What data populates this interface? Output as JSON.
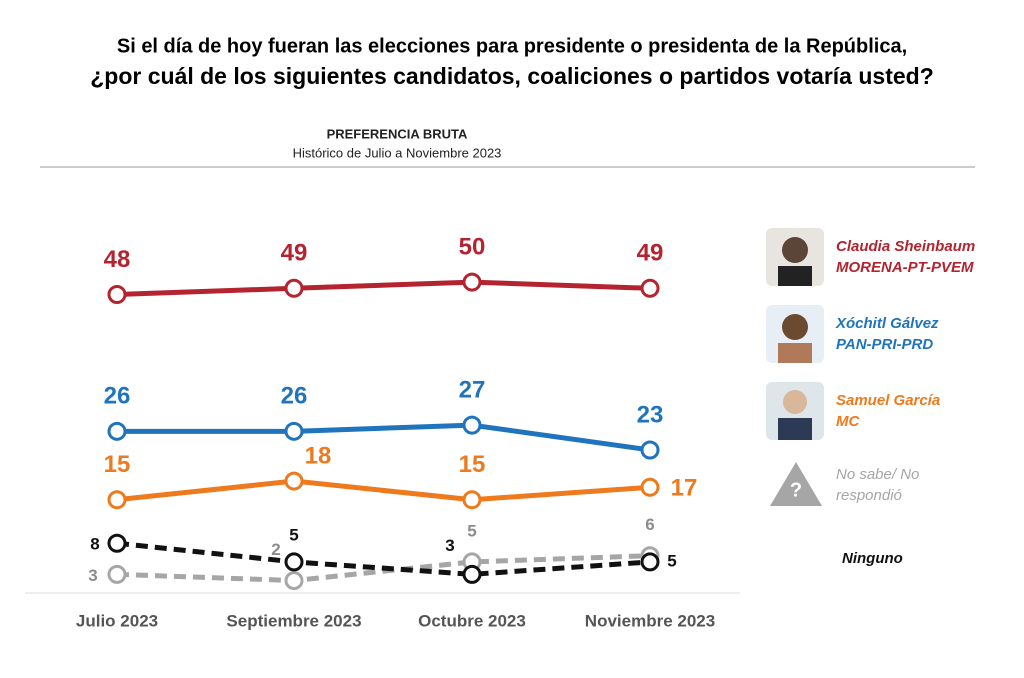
{
  "chart_data": {
    "type": "line",
    "title": [
      "Si el día de hoy fueran las elecciones para presidente o presidenta de la República,",
      "¿por cuál de los siguientes candidatos, coaliciones o partidos votaría usted?"
    ],
    "subtitle": "PREFERENCIA BRUTA",
    "caption": "Histórico de Julio a Noviembre 2023",
    "categories": [
      "Julio 2023",
      "Septiembre 2023",
      "Octubre 2023",
      "Noviembre 2023"
    ],
    "ylim": [
      0,
      55
    ],
    "series": [
      {
        "name": "Claudia Sheinbaum",
        "party": "MORENA-PT-PVEM",
        "color": "#b42430",
        "dashed": false,
        "values": [
          48,
          49,
          50,
          49
        ]
      },
      {
        "name": "Xóchitl Gálvez",
        "party": "PAN-PRI-PRD",
        "color": "#1f74bd",
        "dashed": false,
        "values": [
          26,
          26,
          27,
          23
        ]
      },
      {
        "name": "Samuel García",
        "party": "MC",
        "color": "#ee7a1e",
        "dashed": false,
        "values": [
          15,
          18,
          15,
          17
        ]
      },
      {
        "name": "No sabe/ No respondió",
        "color": "#a6a6a6",
        "dashed": true,
        "values": [
          3,
          2,
          5,
          6
        ]
      },
      {
        "name": "Ninguno",
        "color": "#111111",
        "dashed": true,
        "values": [
          8,
          5,
          3,
          5
        ]
      }
    ]
  }
}
